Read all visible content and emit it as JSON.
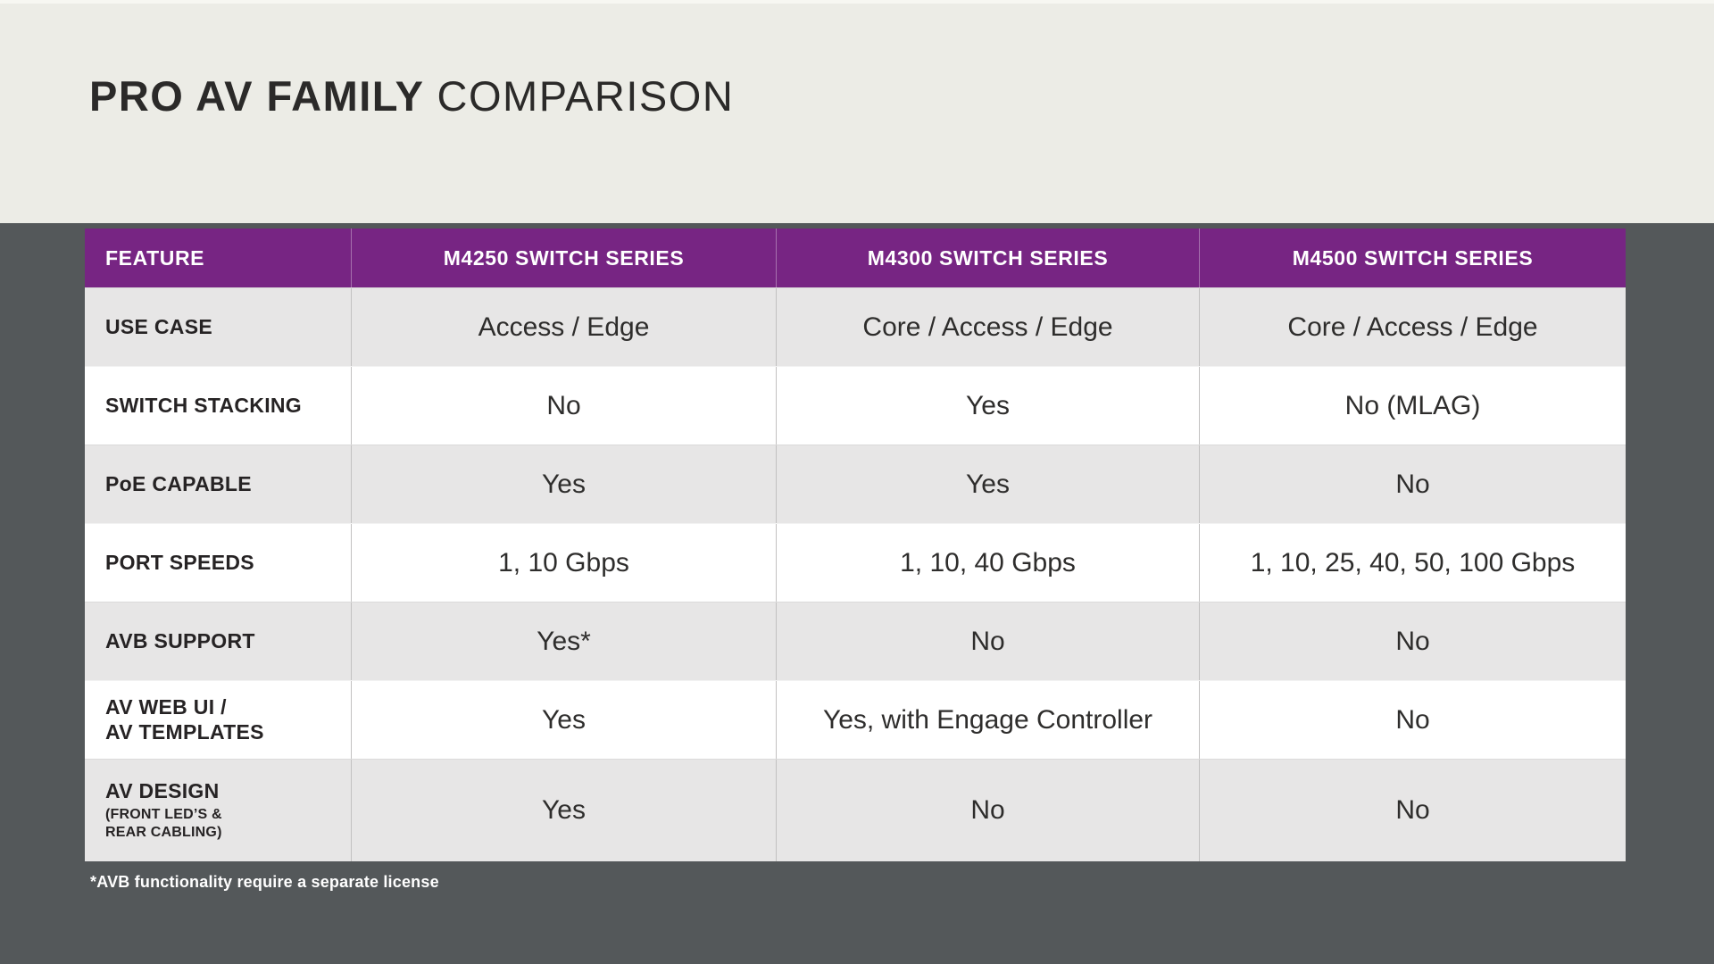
{
  "title": {
    "bold_part": "PRO AV FAMILY",
    "light_part": "COMPARISON"
  },
  "table": {
    "columns": [
      "FEATURE",
      "M4250 SWITCH SERIES",
      "M4300 SWITCH SERIES",
      "M4500 SWITCH SERIES"
    ],
    "rows": [
      {
        "feature": "USE CASE",
        "values": [
          "Access / Edge",
          "Core / Access / Edge",
          "Core / Access / Edge"
        ]
      },
      {
        "feature": "SWITCH STACKING",
        "values": [
          "No",
          "Yes",
          "No (MLAG)"
        ]
      },
      {
        "feature": "PoE CAPABLE",
        "values": [
          "Yes",
          "Yes",
          "No"
        ]
      },
      {
        "feature": "PORT SPEEDS",
        "values": [
          "1, 10 Gbps",
          "1, 10, 40 Gbps",
          "1, 10, 25, 40, 50, 100 Gbps"
        ]
      },
      {
        "feature": "AVB SUPPORT",
        "values": [
          "Yes*",
          "No",
          "No"
        ]
      },
      {
        "feature": "AV WEB UI /\nAV TEMPLATES",
        "values": [
          "Yes",
          "Yes, with Engage Controller",
          "No"
        ]
      },
      {
        "feature": "AV DESIGN",
        "feature_sub": "(FRONT LED’S &\nREAR CABLING)",
        "values": [
          "Yes",
          "No",
          "No"
        ]
      }
    ],
    "footnote": "*AVB functionality require a separate license"
  },
  "colors": {
    "beige": "#ECECE6",
    "darkgray": "#54585A",
    "purple": "#772583",
    "rowgray": "#E7E6E6",
    "rowwhite": "#FFFFFF",
    "labeltext": "#262324",
    "valuetext": "#2E2D2C",
    "titletext": "#2B2A29",
    "divider": "#C2C1C1"
  }
}
